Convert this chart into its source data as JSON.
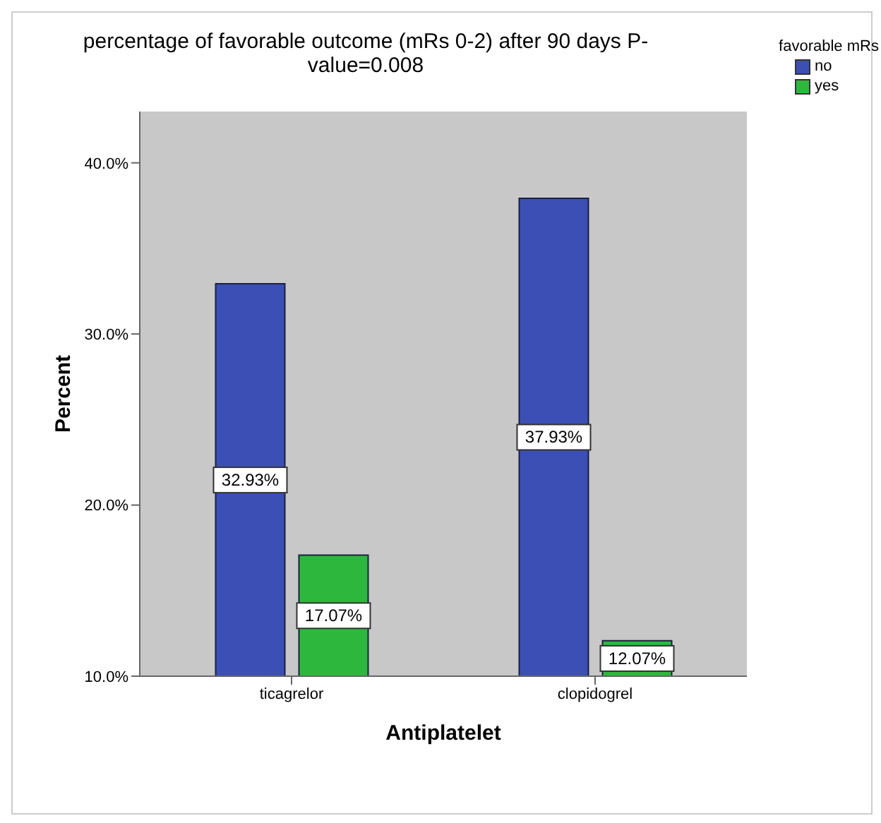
{
  "chart_data": {
    "type": "bar",
    "title": "percentage of favorable outcome (mRs 0-2) after 90 days P-value=0.008",
    "xlabel": "Antiplatelet",
    "ylabel": "Percent",
    "legend_title": "favorable mRs",
    "categories": [
      "ticagrelor",
      "clopidogrel"
    ],
    "series": [
      {
        "name": "no",
        "color": "#3b4fb5",
        "values": [
          32.93,
          37.93
        ],
        "value_labels": [
          "32.93%",
          "37.93%"
        ]
      },
      {
        "name": "yes",
        "color": "#2db83d",
        "values": [
          17.07,
          12.07
        ],
        "value_labels": [
          "17.07%",
          "12.07%"
        ]
      }
    ],
    "ylim": [
      10,
      43
    ],
    "yticks": [
      {
        "value": 10,
        "label": "10.0%"
      },
      {
        "value": 20,
        "label": "20.0%"
      },
      {
        "value": 30,
        "label": "30.0%"
      },
      {
        "value": 40,
        "label": "40.0%"
      }
    ],
    "grid": false,
    "legend": "top right"
  }
}
